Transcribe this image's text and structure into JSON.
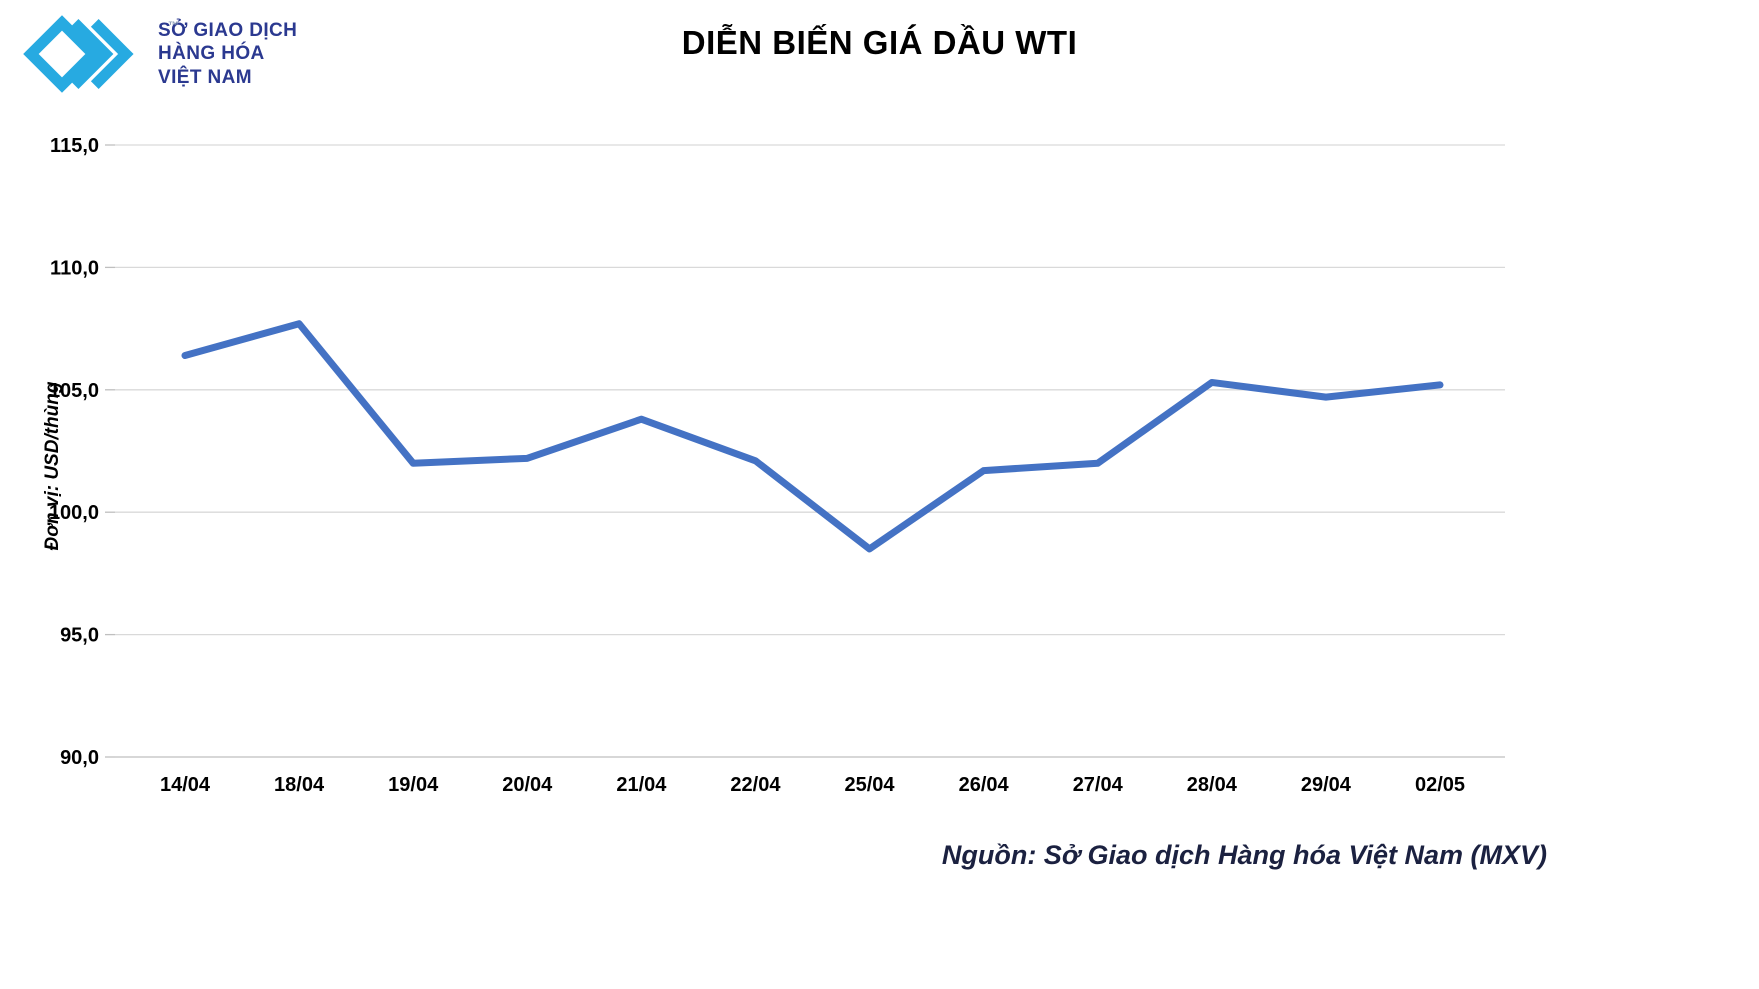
{
  "logo": {
    "line1": "SỞ GIAO DỊCH",
    "line2": "HÀNG HÓA",
    "line3": "VIỆT NAM",
    "trademark": "™",
    "mark_color": "#27AAE1",
    "text_color": "#2B3990"
  },
  "footer": {
    "source": "Nguồn: Sở Giao dịch Hàng hóa Việt Nam (MXV)"
  },
  "chart_data": {
    "type": "line",
    "title": "DIỄN BIẾN GIÁ DẦU WTI",
    "xlabel": "",
    "ylabel": "Đơn vị: USD/thùng",
    "categories": [
      "14/04",
      "18/04",
      "19/04",
      "20/04",
      "21/04",
      "22/04",
      "25/04",
      "26/04",
      "27/04",
      "28/04",
      "29/04",
      "02/05"
    ],
    "values": [
      106.4,
      107.7,
      102.0,
      102.2,
      103.8,
      102.1,
      98.5,
      101.7,
      102.0,
      105.3,
      104.7,
      105.2
    ],
    "ylim": [
      90,
      115
    ],
    "yticks": [
      {
        "value": 90,
        "label": "90,0"
      },
      {
        "value": 95,
        "label": "95,0"
      },
      {
        "value": 100,
        "label": "100,0"
      },
      {
        "value": 105,
        "label": "105,0"
      },
      {
        "value": 110,
        "label": "110,0"
      },
      {
        "value": 115,
        "label": "115,0"
      }
    ],
    "line_color": "#4472C4",
    "grid_color": "#D9D9D9",
    "axis_color": "#BFBFBF",
    "grid": true,
    "legend_position": "none",
    "unit": "USD/thùng"
  }
}
